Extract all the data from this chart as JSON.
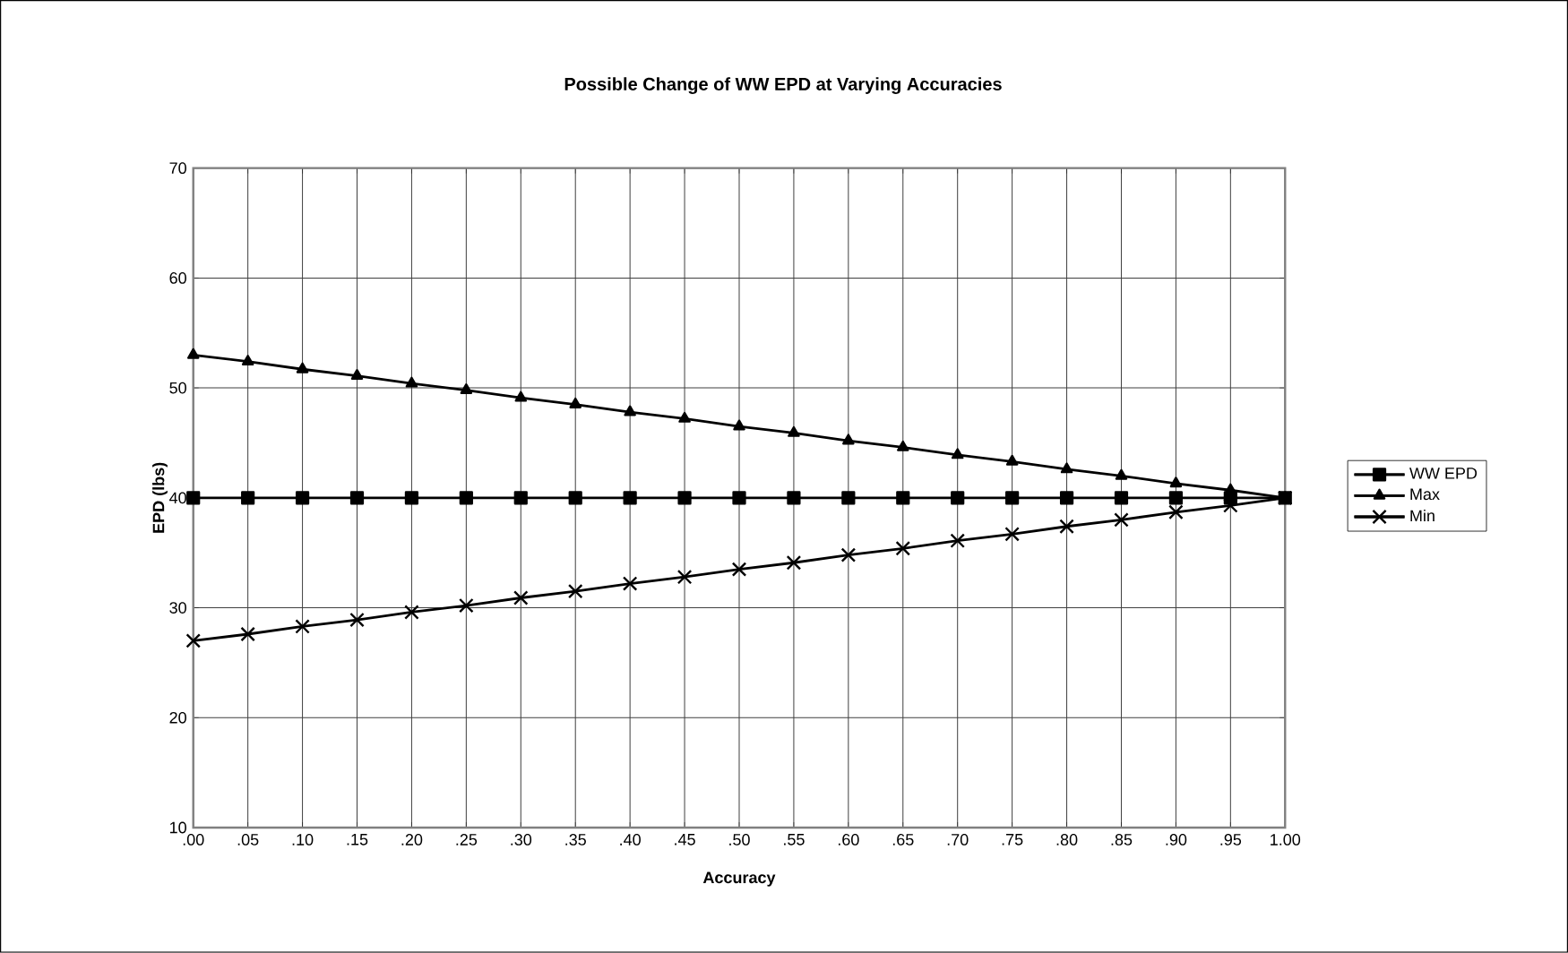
{
  "chart_data": {
    "type": "line",
    "title": "Possible Change of WW EPD at Varying Accuracies",
    "xlabel": "Accuracy",
    "ylabel": "EPD (lbs)",
    "categories": [
      ".00",
      ".05",
      ".10",
      ".15",
      ".20",
      ".25",
      ".30",
      ".35",
      ".40",
      ".45",
      ".50",
      ".55",
      ".60",
      ".65",
      ".70",
      ".75",
      ".80",
      ".85",
      ".90",
      ".95",
      "1.00"
    ],
    "series": [
      {
        "name": "WW EPD",
        "color": "#000000",
        "marker": "square",
        "values": [
          40,
          40,
          40,
          40,
          40,
          40,
          40,
          40,
          40,
          40,
          40,
          40,
          40,
          40,
          40,
          40,
          40,
          40,
          40,
          40,
          40
        ]
      },
      {
        "name": "Max",
        "color": "#000000",
        "marker": "triangle",
        "values": [
          53,
          52.4,
          51.7,
          51.1,
          50.4,
          49.8,
          49.1,
          48.5,
          47.8,
          47.2,
          46.5,
          45.9,
          45.2,
          44.6,
          43.9,
          43.3,
          42.6,
          42,
          41.3,
          40.7,
          40
        ]
      },
      {
        "name": "Min",
        "color": "#000000",
        "marker": "cross",
        "values": [
          27,
          27.6,
          28.3,
          28.9,
          29.6,
          30.2,
          30.9,
          31.5,
          32.2,
          32.8,
          33.5,
          34.1,
          34.8,
          35.4,
          36.1,
          36.7,
          37.4,
          38,
          38.7,
          39.3,
          40
        ]
      }
    ],
    "ylim": [
      10,
      70
    ],
    "yticks": [
      10,
      20,
      30,
      40,
      50,
      60,
      70
    ],
    "grid": true,
    "legend": "right",
    "line_style": "solid"
  }
}
